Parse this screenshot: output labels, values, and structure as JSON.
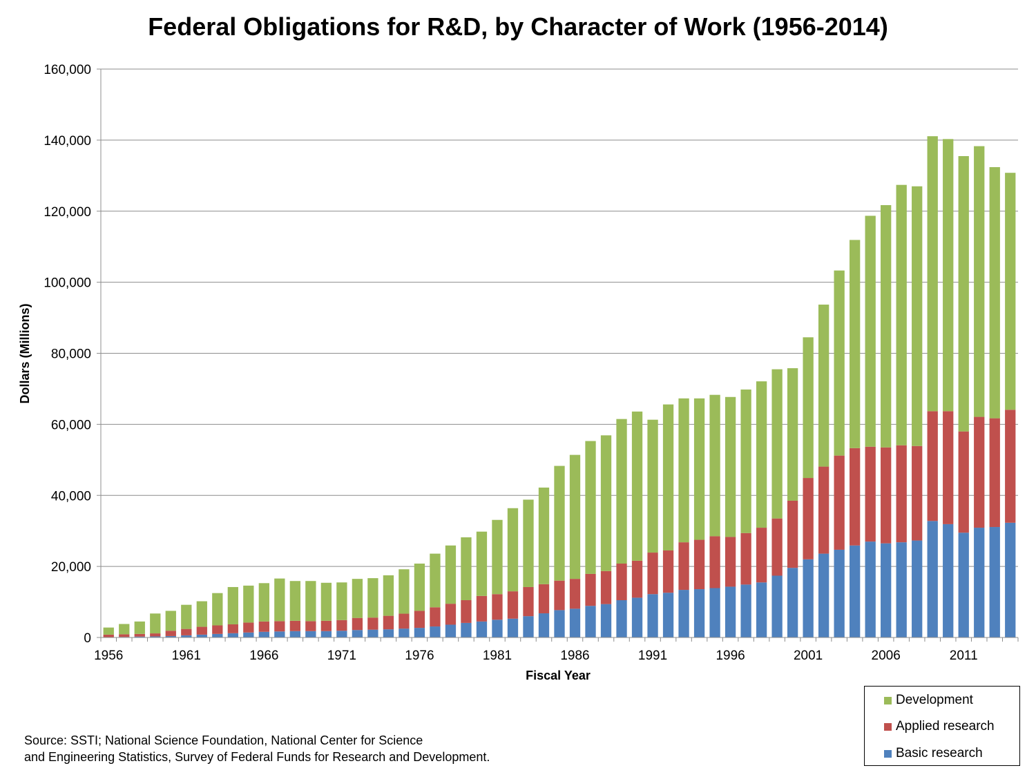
{
  "chart_data": {
    "type": "bar",
    "stacked": true,
    "title": "Federal Obligations for R&D, by Character of Work (1956-2014)",
    "xlabel": "Fiscal Year",
    "ylabel": "Dollars (Millions)",
    "ylim": [
      0,
      160000
    ],
    "yticks": [
      "0",
      "20,000",
      "40,000",
      "60,000",
      "80,000",
      "100,000",
      "120,000",
      "140,000",
      "160,000"
    ],
    "xtick_labels": [
      "1956",
      "1961",
      "1966",
      "1971",
      "1976",
      "1981",
      "1986",
      "1991",
      "1996",
      "2001",
      "2006",
      "2011"
    ],
    "grid": "horizontal",
    "legend_position": "bottom-right",
    "categories": [
      1956,
      1957,
      1958,
      1959,
      1960,
      1961,
      1962,
      1963,
      1964,
      1965,
      1966,
      1967,
      1968,
      1969,
      1970,
      1971,
      1972,
      1973,
      1974,
      1975,
      1976,
      1977,
      1978,
      1979,
      1980,
      1981,
      1982,
      1983,
      1984,
      1985,
      1986,
      1987,
      1988,
      1989,
      1990,
      1991,
      1992,
      1993,
      1994,
      1995,
      1996,
      1997,
      1998,
      1999,
      2000,
      2001,
      2002,
      2003,
      2004,
      2005,
      2006,
      2007,
      2008,
      2009,
      2010,
      2011,
      2012,
      2013,
      2014
    ],
    "series": [
      {
        "name": "Basic research",
        "color": "#4f81bd",
        "values": [
          100,
          150,
          250,
          300,
          400,
          600,
          800,
          1000,
          1200,
          1400,
          1600,
          1700,
          1800,
          1800,
          1800,
          1900,
          2100,
          2200,
          2300,
          2500,
          2700,
          3100,
          3600,
          4100,
          4500,
          5000,
          5300,
          6000,
          6800,
          7700,
          8100,
          8900,
          9400,
          10500,
          11200,
          12200,
          12600,
          13400,
          13600,
          13900,
          14300,
          14900,
          15500,
          17400,
          19600,
          22000,
          23600,
          24700,
          25900,
          27000,
          26500,
          26800,
          27300,
          32800,
          31900,
          29500,
          30900,
          31100,
          32300
        ]
      },
      {
        "name": "Applied research",
        "color": "#c0504d",
        "values": [
          700,
          750,
          750,
          850,
          1500,
          1800,
          2200,
          2400,
          2500,
          2800,
          2900,
          2900,
          2900,
          2800,
          2900,
          3000,
          3400,
          3400,
          3800,
          4200,
          4800,
          5400,
          5900,
          6400,
          7200,
          7200,
          7700,
          8200,
          8200,
          8300,
          8400,
          9000,
          9300,
          10300,
          10400,
          11700,
          11900,
          13400,
          13900,
          14600,
          14000,
          14500,
          15400,
          16100,
          18900,
          22900,
          24500,
          26500,
          27400,
          26700,
          27000,
          27300,
          26600,
          30900,
          31800,
          28500,
          31200,
          30600,
          31800
        ]
      },
      {
        "name": "Development",
        "color": "#9bbb59",
        "values": [
          2000,
          2900,
          3500,
          5600,
          5600,
          6800,
          7200,
          9100,
          10500,
          10400,
          10800,
          12000,
          11200,
          11300,
          10700,
          10600,
          11000,
          11100,
          11400,
          12500,
          13300,
          15100,
          16400,
          17700,
          18100,
          20900,
          23400,
          24600,
          27200,
          32300,
          34900,
          37400,
          38200,
          40700,
          42000,
          37400,
          41100,
          40500,
          39800,
          39800,
          39400,
          40400,
          41200,
          42000,
          37300,
          39600,
          45600,
          52100,
          58600,
          65000,
          68200,
          73300,
          73100,
          77400,
          76600,
          77500,
          76200,
          70700,
          66700
        ]
      }
    ]
  },
  "source_lines": [
    "Source: SSTI; National Science Foundation, National Center for Science",
    "and Engineering Statistics, Survey of Federal Funds for Research and Development."
  ]
}
